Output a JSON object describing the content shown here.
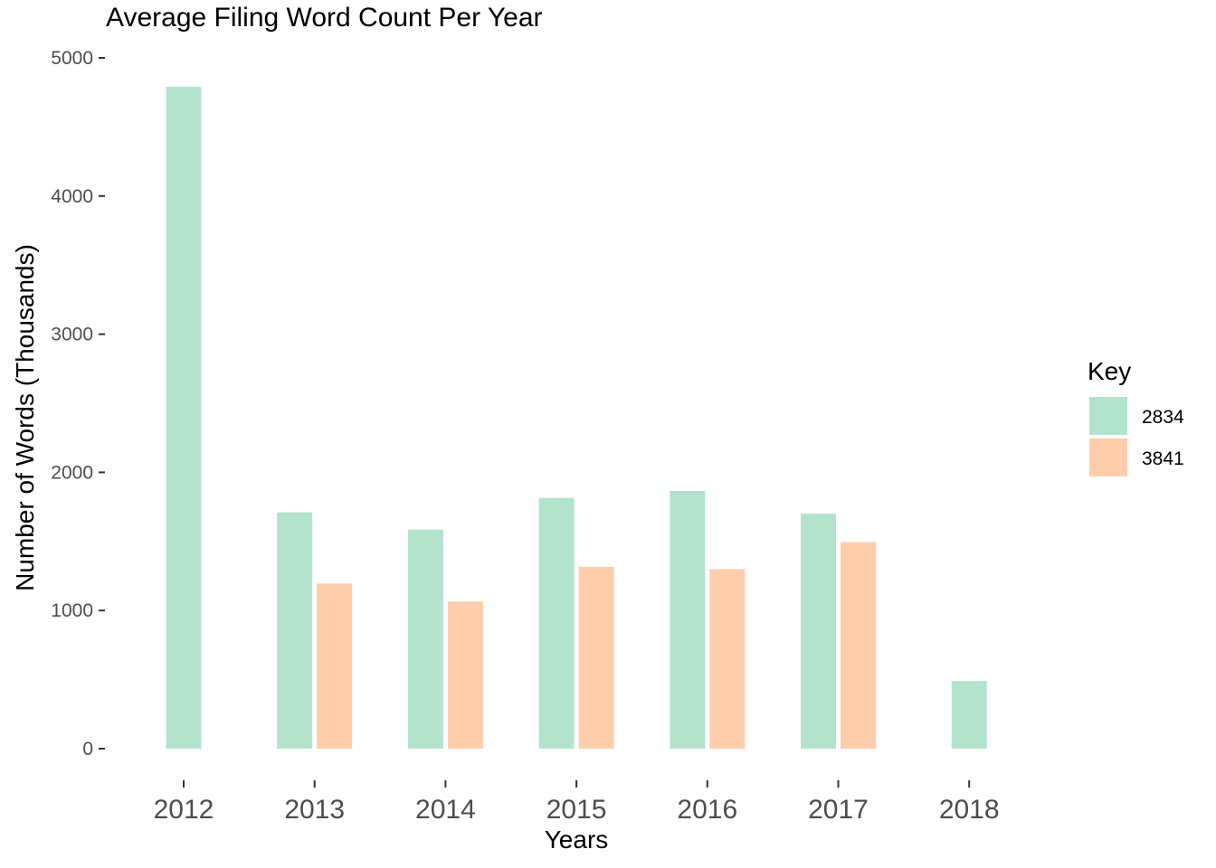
{
  "chart_data": {
    "type": "bar",
    "title": "Average Filing Word Count Per Year",
    "xlabel": "Years",
    "ylabel": "Number of Words (Thousands)",
    "categories": [
      "2012",
      "2013",
      "2014",
      "2015",
      "2016",
      "2017",
      "2018"
    ],
    "ylim": [
      0,
      5000
    ],
    "yticks": [
      "0",
      "1000",
      "2000",
      "3000",
      "4000",
      "5000"
    ],
    "grid": false,
    "legend": {
      "title": "Key",
      "position": "right"
    },
    "series": [
      {
        "name": "2834",
        "color": "#b3e2cd",
        "values": [
          4790,
          1710,
          1585,
          1815,
          1865,
          1700,
          490
        ]
      },
      {
        "name": "3841",
        "color": "#fdcdac",
        "values": [
          null,
          1195,
          1065,
          1315,
          1300,
          1495,
          null
        ]
      }
    ]
  }
}
